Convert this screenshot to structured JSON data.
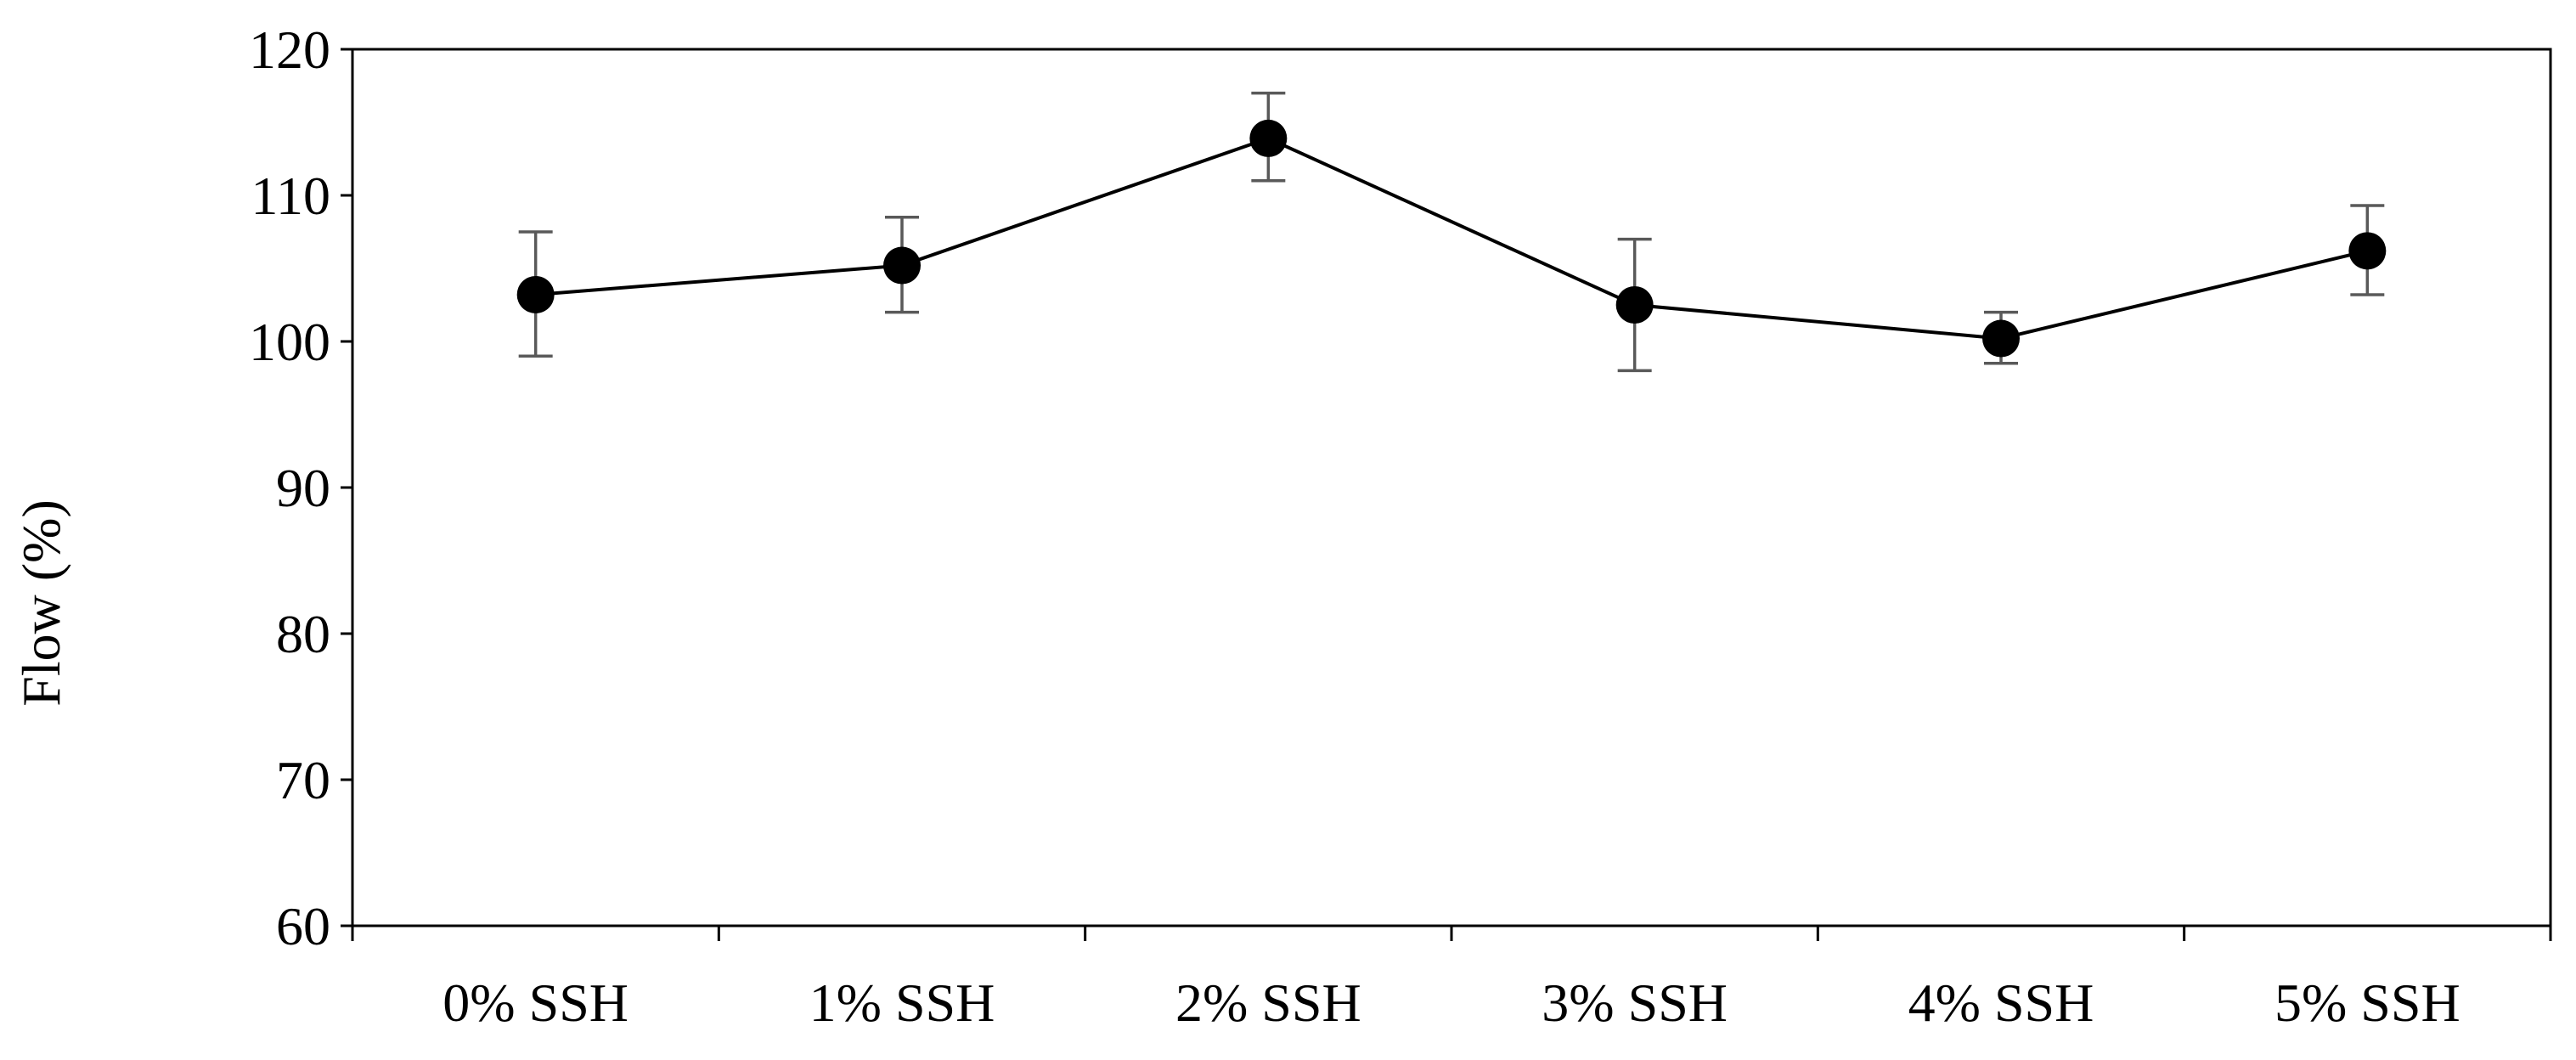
{
  "chart_data": {
    "type": "line",
    "title": "",
    "xlabel": "",
    "ylabel": "Flow (%)",
    "ylim": [
      60,
      120
    ],
    "yticks": [
      60,
      70,
      80,
      90,
      100,
      110,
      120
    ],
    "grid": false,
    "legend": "none",
    "categories": [
      "0% SSH",
      "1% SSH",
      "2% SSH",
      "3% SSH",
      "4% SSH",
      "5% SSH"
    ],
    "series": [
      {
        "values": [
          103.2,
          105.2,
          113.9,
          102.5,
          100.2,
          106.2
        ],
        "error_lower": [
          99.0,
          102.0,
          111.0,
          98.0,
          98.5,
          103.2
        ],
        "error_upper": [
          107.5,
          108.5,
          117.0,
          107.0,
          102.0,
          109.3
        ],
        "color": "#000000",
        "error_bar_color": "#595959"
      }
    ]
  }
}
